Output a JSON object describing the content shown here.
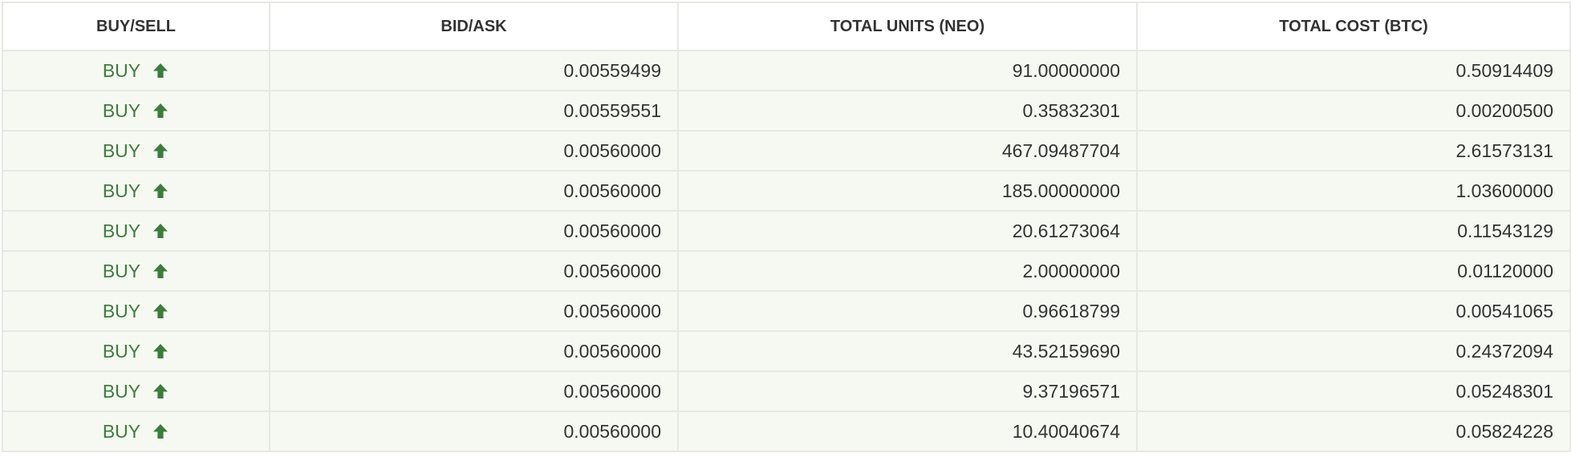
{
  "table": {
    "headers": [
      "BUY/SELL",
      "BID/ASK",
      "TOTAL UNITS (NEO)",
      "TOTAL COST (BTC)"
    ],
    "rows": [
      {
        "side": "BUY",
        "icon": "arrow-up-icon",
        "bid_ask": "0.00559499",
        "total_units": "91.00000000",
        "total_cost": "0.50914409"
      },
      {
        "side": "BUY",
        "icon": "arrow-up-icon",
        "bid_ask": "0.00559551",
        "total_units": "0.35832301",
        "total_cost": "0.00200500"
      },
      {
        "side": "BUY",
        "icon": "arrow-up-icon",
        "bid_ask": "0.00560000",
        "total_units": "467.09487704",
        "total_cost": "2.61573131"
      },
      {
        "side": "BUY",
        "icon": "arrow-up-icon",
        "bid_ask": "0.00560000",
        "total_units": "185.00000000",
        "total_cost": "1.03600000"
      },
      {
        "side": "BUY",
        "icon": "arrow-up-icon",
        "bid_ask": "0.00560000",
        "total_units": "20.61273064",
        "total_cost": "0.11543129"
      },
      {
        "side": "BUY",
        "icon": "arrow-up-icon",
        "bid_ask": "0.00560000",
        "total_units": "2.00000000",
        "total_cost": "0.01120000"
      },
      {
        "side": "BUY",
        "icon": "arrow-up-icon",
        "bid_ask": "0.00560000",
        "total_units": "0.96618799",
        "total_cost": "0.00541065"
      },
      {
        "side": "BUY",
        "icon": "arrow-up-icon",
        "bid_ask": "0.00560000",
        "total_units": "43.52159690",
        "total_cost": "0.24372094"
      },
      {
        "side": "BUY",
        "icon": "arrow-up-icon",
        "bid_ask": "0.00560000",
        "total_units": "9.37196571",
        "total_cost": "0.05248301"
      },
      {
        "side": "BUY",
        "icon": "arrow-up-icon",
        "bid_ask": "0.00560000",
        "total_units": "10.40040674",
        "total_cost": "0.05824228"
      }
    ]
  },
  "colors": {
    "buy_text": "#3b7d3a",
    "row_background": "#f6f9f2",
    "grid_line": "#e6e8e3",
    "header_text": "#333333"
  }
}
